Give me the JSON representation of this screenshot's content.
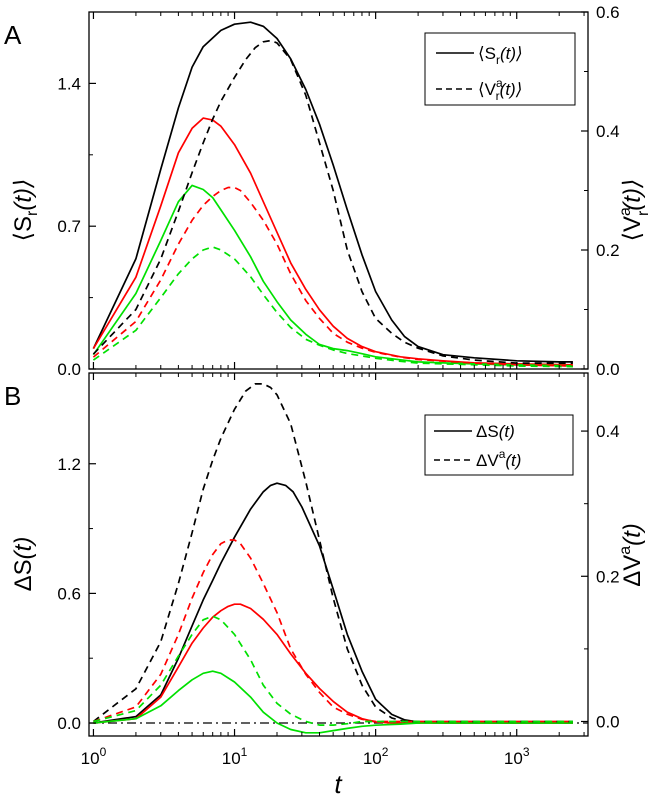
{
  "colors": {
    "black": "#000000",
    "red": "#ff0000",
    "green": "#00e000"
  },
  "chart_data": [
    {
      "panel": "A",
      "panel_label": "A",
      "type": "line",
      "xscale": "log",
      "xlim": [
        0.93,
        3200
      ],
      "ylim": [
        0,
        1.75
      ],
      "ylim_right": [
        0,
        0.6
      ],
      "yticks": [
        0.0,
        0.7,
        1.4
      ],
      "ytick_labels": [
        "0.0",
        "0.7",
        "1.4"
      ],
      "yticks_right": [
        0.0,
        0.2,
        0.4,
        0.6
      ],
      "ytick_labels_right": [
        "0.0",
        "0.2",
        "0.4",
        "0.6"
      ],
      "ylabel_main": "⟨S",
      "ylabel_sub": "r",
      "ylabel_tail": "(t)⟩",
      "ylabel_right_main": "⟨V",
      "ylabel_right_sup": "a",
      "ylabel_right_sub": "r",
      "ylabel_right_tail": "(t)⟩",
      "legend": {
        "position": "top-right",
        "solid_main": "⟨S",
        "solid_sub": "r",
        "solid_tail": "(t)⟩",
        "dashed_main": "⟨V",
        "dashed_sup": "a",
        "dashed_sub": "r",
        "dashed_tail": "(t)⟩"
      },
      "series": [
        {
          "name": "S black",
          "color": "black",
          "dash": false,
          "axis": "left",
          "x": [
            1,
            2,
            3,
            4,
            5,
            6,
            8,
            10,
            13,
            16,
            20,
            25,
            32,
            40,
            50,
            63,
            80,
            100,
            130,
            160,
            200,
            300,
            500,
            1000,
            2000,
            2500
          ],
          "y": [
            0.1,
            0.54,
            0.98,
            1.28,
            1.48,
            1.58,
            1.66,
            1.69,
            1.7,
            1.68,
            1.62,
            1.52,
            1.37,
            1.2,
            1.0,
            0.78,
            0.56,
            0.38,
            0.24,
            0.16,
            0.11,
            0.07,
            0.055,
            0.04,
            0.035,
            0.035
          ]
        },
        {
          "name": "S red",
          "color": "red",
          "dash": false,
          "axis": "left",
          "x": [
            1,
            2,
            3,
            4,
            5,
            6,
            7,
            8,
            10,
            13,
            16,
            20,
            25,
            32,
            40,
            50,
            63,
            80,
            100,
            150,
            200,
            300,
            500,
            1000,
            2500
          ],
          "y": [
            0.1,
            0.45,
            0.8,
            1.06,
            1.18,
            1.23,
            1.22,
            1.19,
            1.1,
            0.96,
            0.82,
            0.67,
            0.52,
            0.39,
            0.29,
            0.21,
            0.15,
            0.11,
            0.085,
            0.06,
            0.05,
            0.04,
            0.03,
            0.025,
            0.02
          ]
        },
        {
          "name": "S green",
          "color": "green",
          "dash": false,
          "axis": "left",
          "x": [
            1,
            2,
            3,
            4,
            5,
            6,
            7,
            8,
            10,
            13,
            16,
            20,
            25,
            32,
            40,
            50,
            63,
            80,
            100,
            150,
            200,
            300,
            500,
            1000,
            2500
          ],
          "y": [
            0.07,
            0.37,
            0.63,
            0.82,
            0.9,
            0.88,
            0.84,
            0.78,
            0.68,
            0.55,
            0.43,
            0.33,
            0.24,
            0.17,
            0.12,
            0.1,
            0.09,
            0.075,
            0.06,
            0.045,
            0.035,
            0.03,
            0.025,
            0.02,
            0.015
          ]
        },
        {
          "name": "V black",
          "color": "black",
          "dash": true,
          "axis": "right",
          "x": [
            1,
            2,
            3,
            4,
            5,
            6,
            7,
            8,
            10,
            12,
            14,
            16,
            18,
            20,
            25,
            32,
            40,
            50,
            63,
            80,
            100,
            130,
            160,
            200,
            300,
            500,
            1000,
            2000,
            2500
          ],
          "y": [
            0.025,
            0.1,
            0.185,
            0.265,
            0.33,
            0.38,
            0.42,
            0.45,
            0.49,
            0.52,
            0.54,
            0.55,
            0.552,
            0.548,
            0.52,
            0.46,
            0.38,
            0.3,
            0.2,
            0.13,
            0.085,
            0.06,
            0.045,
            0.035,
            0.022,
            0.015,
            0.01,
            0.01,
            0.01
          ]
        },
        {
          "name": "V red",
          "color": "red",
          "dash": true,
          "axis": "right",
          "x": [
            1,
            2,
            3,
            4,
            5,
            6,
            7,
            8,
            9,
            10,
            11,
            13,
            16,
            20,
            25,
            32,
            40,
            50,
            63,
            80,
            100,
            150,
            200,
            500,
            1000,
            2500
          ],
          "y": [
            0.02,
            0.08,
            0.15,
            0.21,
            0.25,
            0.275,
            0.29,
            0.3,
            0.305,
            0.305,
            0.3,
            0.28,
            0.25,
            0.21,
            0.16,
            0.115,
            0.085,
            0.06,
            0.045,
            0.035,
            0.028,
            0.02,
            0.016,
            0.01,
            0.007,
            0.005
          ]
        },
        {
          "name": "V green",
          "color": "green",
          "dash": true,
          "axis": "right",
          "x": [
            1,
            2,
            3,
            4,
            5,
            6,
            7,
            8,
            10,
            13,
            16,
            20,
            25,
            32,
            40,
            50,
            63,
            80,
            100,
            150,
            200,
            500,
            1000,
            2500
          ],
          "y": [
            0.015,
            0.065,
            0.12,
            0.16,
            0.185,
            0.2,
            0.205,
            0.2,
            0.185,
            0.155,
            0.125,
            0.095,
            0.07,
            0.05,
            0.04,
            0.032,
            0.026,
            0.022,
            0.018,
            0.013,
            0.01,
            0.007,
            0.005,
            0.004
          ]
        }
      ]
    },
    {
      "panel": "B",
      "panel_label": "B",
      "type": "line",
      "xscale": "log",
      "xlim": [
        0.93,
        3200
      ],
      "ylim": [
        -0.06,
        1.62
      ],
      "ylim_right": [
        -0.02,
        0.48
      ],
      "yticks": [
        0.0,
        0.6,
        1.2
      ],
      "ytick_labels": [
        "0.0",
        "0.6",
        "1.2"
      ],
      "yticks_right": [
        0.0,
        0.2,
        0.4
      ],
      "ytick_labels_right": [
        "0.0",
        "0.2",
        "0.4"
      ],
      "xticks": [
        1,
        10,
        100,
        1000
      ],
      "xtick_bases": [
        "10",
        "10",
        "10",
        "10"
      ],
      "xtick_exps": [
        "0",
        "1",
        "2",
        "3"
      ],
      "xlabel": "t",
      "ylabel_main": "ΔS",
      "ylabel_tail": "(t)",
      "ylabel_right_main": "ΔV",
      "ylabel_right_sup": "a",
      "ylabel_right_tail": "(t)",
      "legend": {
        "position": "top-right",
        "solid_main": "ΔS",
        "solid_tail": "(t)",
        "dashed_main": "ΔV",
        "dashed_sup": "a",
        "dashed_tail": "(t)"
      },
      "baseline": {
        "y": 0,
        "style": "dash-dot"
      },
      "series": [
        {
          "name": "dS black",
          "color": "black",
          "dash": false,
          "axis": "left",
          "x": [
            1,
            2,
            3,
            4,
            5,
            6,
            7,
            8,
            10,
            13,
            16,
            18,
            20,
            23,
            26,
            30,
            40,
            50,
            63,
            80,
            100,
            130,
            160,
            200,
            250,
            300,
            500,
            1000,
            2500
          ],
          "y": [
            0.0,
            0.03,
            0.13,
            0.3,
            0.45,
            0.57,
            0.66,
            0.74,
            0.86,
            0.99,
            1.07,
            1.1,
            1.11,
            1.1,
            1.07,
            1.0,
            0.82,
            0.62,
            0.41,
            0.24,
            0.11,
            0.04,
            0.015,
            0.005,
            0.002,
            0.0,
            0.0,
            0.0,
            0.0
          ]
        },
        {
          "name": "dS red",
          "color": "red",
          "dash": false,
          "axis": "left",
          "x": [
            1,
            2,
            3,
            4,
            5,
            6,
            7,
            8,
            9,
            10,
            11,
            13,
            16,
            20,
            25,
            32,
            40,
            50,
            63,
            80,
            100,
            130,
            160,
            200,
            300,
            500,
            1000,
            2500
          ],
          "y": [
            0.0,
            0.02,
            0.12,
            0.26,
            0.37,
            0.44,
            0.49,
            0.52,
            0.54,
            0.55,
            0.55,
            0.53,
            0.48,
            0.41,
            0.32,
            0.23,
            0.16,
            0.1,
            0.05,
            0.02,
            0.005,
            0.0,
            0.0,
            0.0,
            0.0,
            0.0,
            0.0,
            0.0
          ]
        },
        {
          "name": "dS green",
          "color": "green",
          "dash": false,
          "axis": "left",
          "x": [
            1,
            2,
            3,
            4,
            5,
            6,
            7,
            8,
            10,
            13,
            16,
            20,
            25,
            32,
            40,
            50,
            63,
            80,
            100,
            150,
            200,
            500,
            1000,
            2500
          ],
          "y": [
            0.0,
            0.02,
            0.08,
            0.15,
            0.2,
            0.23,
            0.24,
            0.23,
            0.19,
            0.12,
            0.05,
            0.0,
            -0.03,
            -0.045,
            -0.045,
            -0.035,
            -0.025,
            -0.015,
            -0.01,
            -0.005,
            0.0,
            0.0,
            0.0,
            0.0
          ]
        },
        {
          "name": "dV black",
          "color": "black",
          "dash": true,
          "axis": "right",
          "x": [
            1,
            2,
            3,
            4,
            5,
            6,
            7,
            8,
            10,
            12,
            14,
            16,
            18,
            20,
            25,
            32,
            40,
            50,
            63,
            80,
            100,
            130,
            160,
            200,
            250,
            300,
            500,
            1000,
            2500
          ],
          "y": [
            0.0,
            0.045,
            0.11,
            0.19,
            0.26,
            0.32,
            0.36,
            0.39,
            0.43,
            0.455,
            0.465,
            0.465,
            0.46,
            0.45,
            0.41,
            0.33,
            0.25,
            0.17,
            0.1,
            0.05,
            0.02,
            0.005,
            0.0,
            0.0,
            0.0,
            0.0,
            0.0,
            0.0,
            0.0
          ]
        },
        {
          "name": "dV red",
          "color": "red",
          "dash": true,
          "axis": "right",
          "x": [
            1,
            2,
            3,
            4,
            5,
            6,
            7,
            8,
            9,
            10,
            11,
            13,
            16,
            20,
            25,
            32,
            40,
            50,
            63,
            80,
            100,
            130,
            200,
            500,
            1000,
            2500
          ],
          "y": [
            0.0,
            0.02,
            0.065,
            0.12,
            0.17,
            0.205,
            0.23,
            0.245,
            0.25,
            0.25,
            0.245,
            0.225,
            0.19,
            0.15,
            0.1,
            0.065,
            0.04,
            0.02,
            0.01,
            0.003,
            0.0,
            0.0,
            0.0,
            0.0,
            0.0,
            0.0
          ]
        },
        {
          "name": "dV green",
          "color": "green",
          "dash": true,
          "axis": "right",
          "x": [
            1,
            2,
            3,
            4,
            5,
            6,
            7,
            8,
            10,
            13,
            16,
            20,
            25,
            32,
            40,
            50,
            63,
            80,
            100,
            150,
            200,
            500,
            1000,
            2500
          ],
          "y": [
            0.0,
            0.015,
            0.05,
            0.09,
            0.12,
            0.14,
            0.145,
            0.14,
            0.12,
            0.085,
            0.05,
            0.025,
            0.01,
            0.0,
            -0.005,
            -0.005,
            -0.003,
            0.0,
            0.0,
            0.0,
            0.0,
            0.0,
            0.0,
            0.0
          ]
        }
      ]
    }
  ]
}
